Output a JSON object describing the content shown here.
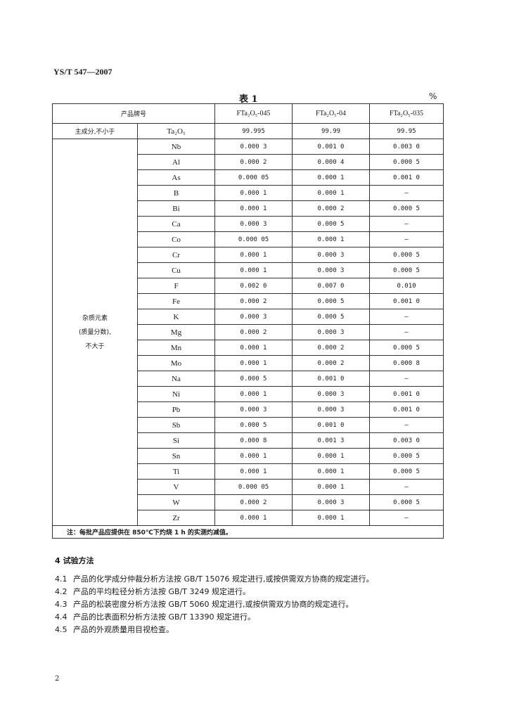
{
  "header": {
    "standard_no": "YS/T 547—2007"
  },
  "table": {
    "title": "表 1",
    "unit": "%",
    "header_label": "产品牌号",
    "grades": [
      "FTa₂O₅-045",
      "FTa₂O₅-04",
      "FTa₂O₅-035"
    ],
    "main_component": {
      "label": "主成分,不小于",
      "element": "Ta₂O₅",
      "values": [
        "99.995",
        "99.99",
        "99.95"
      ]
    },
    "impurity_label": [
      "杂质元素",
      "(质量分数),",
      "不大于"
    ],
    "rows": [
      {
        "element": "Nb",
        "values": [
          "0.000 3",
          "0.001 0",
          "0.003 0"
        ]
      },
      {
        "element": "Al",
        "values": [
          "0.000 2",
          "0.000 4",
          "0.000 5"
        ]
      },
      {
        "element": "As",
        "values": [
          "0.000 05",
          "0.000 1",
          "0.001 0"
        ]
      },
      {
        "element": "B",
        "values": [
          "0.000 1",
          "0.000 1",
          "—"
        ]
      },
      {
        "element": "Bi",
        "values": [
          "0.000 1",
          "0.000 2",
          "0.000 5"
        ]
      },
      {
        "element": "Ca",
        "values": [
          "0.000 3",
          "0.000 5",
          "—"
        ]
      },
      {
        "element": "Co",
        "values": [
          "0.000 05",
          "0.000 1",
          "—"
        ]
      },
      {
        "element": "Cr",
        "values": [
          "0.000 1",
          "0.000 3",
          "0.000 5"
        ]
      },
      {
        "element": "Cu",
        "values": [
          "0.000 1",
          "0.000 3",
          "0.000 5"
        ]
      },
      {
        "element": "F",
        "values": [
          "0.002 0",
          "0.007 0",
          "0.010"
        ]
      },
      {
        "element": "Fe",
        "values": [
          "0.000 2",
          "0.000 5",
          "0.001 0"
        ]
      },
      {
        "element": "K",
        "values": [
          "0.000 3",
          "0.000 5",
          "—"
        ]
      },
      {
        "element": "Mg",
        "values": [
          "0.000 2",
          "0.000 3",
          "—"
        ]
      },
      {
        "element": "Mn",
        "values": [
          "0.000 1",
          "0.000 2",
          "0.000 5"
        ]
      },
      {
        "element": "Mo",
        "values": [
          "0.000 1",
          "0.000 2",
          "0.000 8"
        ]
      },
      {
        "element": "Na",
        "values": [
          "0.000 5",
          "0.001 0",
          "—"
        ]
      },
      {
        "element": "Ni",
        "values": [
          "0.000 1",
          "0.000 3",
          "0.001 0"
        ]
      },
      {
        "element": "Pb",
        "values": [
          "0.000 3",
          "0.000 3",
          "0.001 0"
        ]
      },
      {
        "element": "Sb",
        "values": [
          "0.000 5",
          "0.001 0",
          "—"
        ]
      },
      {
        "element": "Si",
        "values": [
          "0.000 8",
          "0.001 3",
          "0.003 0"
        ]
      },
      {
        "element": "Sn",
        "values": [
          "0.000 1",
          "0.000 1",
          "0.000 5"
        ]
      },
      {
        "element": "Ti",
        "values": [
          "0.000 1",
          "0.000 1",
          "0.000 5"
        ]
      },
      {
        "element": "V",
        "values": [
          "0.000 05",
          "0.000 1",
          "—"
        ]
      },
      {
        "element": "W",
        "values": [
          "0.000 2",
          "0.000 3",
          "0.000 5"
        ]
      },
      {
        "element": "Zr",
        "values": [
          "0.000 1",
          "0.000 1",
          "—"
        ]
      }
    ],
    "note": "注：每批产品应提供在 850℃下灼烧 1 h 的实测灼减值。"
  },
  "section": {
    "title": "4  试验方法",
    "items": [
      {
        "num": "4.1",
        "text": "产品的化学成分仲裁分析方法按 GB/T 15076 规定进行,或按供需双方协商的规定进行。"
      },
      {
        "num": "4.2",
        "text": "产品的平均粒径分析方法按 GB/T 3249 规定进行。"
      },
      {
        "num": "4.3",
        "text": "产品的松装密度分析方法按 GB/T 5060 规定进行,或按供需双方协商的规定进行。"
      },
      {
        "num": "4.4",
        "text": "产品的比表面积分析方法按 GB/T 13390 规定进行。"
      },
      {
        "num": "4.5",
        "text": "产品的外观质量用目视检查。"
      }
    ]
  },
  "footer": {
    "page_number": "2"
  }
}
